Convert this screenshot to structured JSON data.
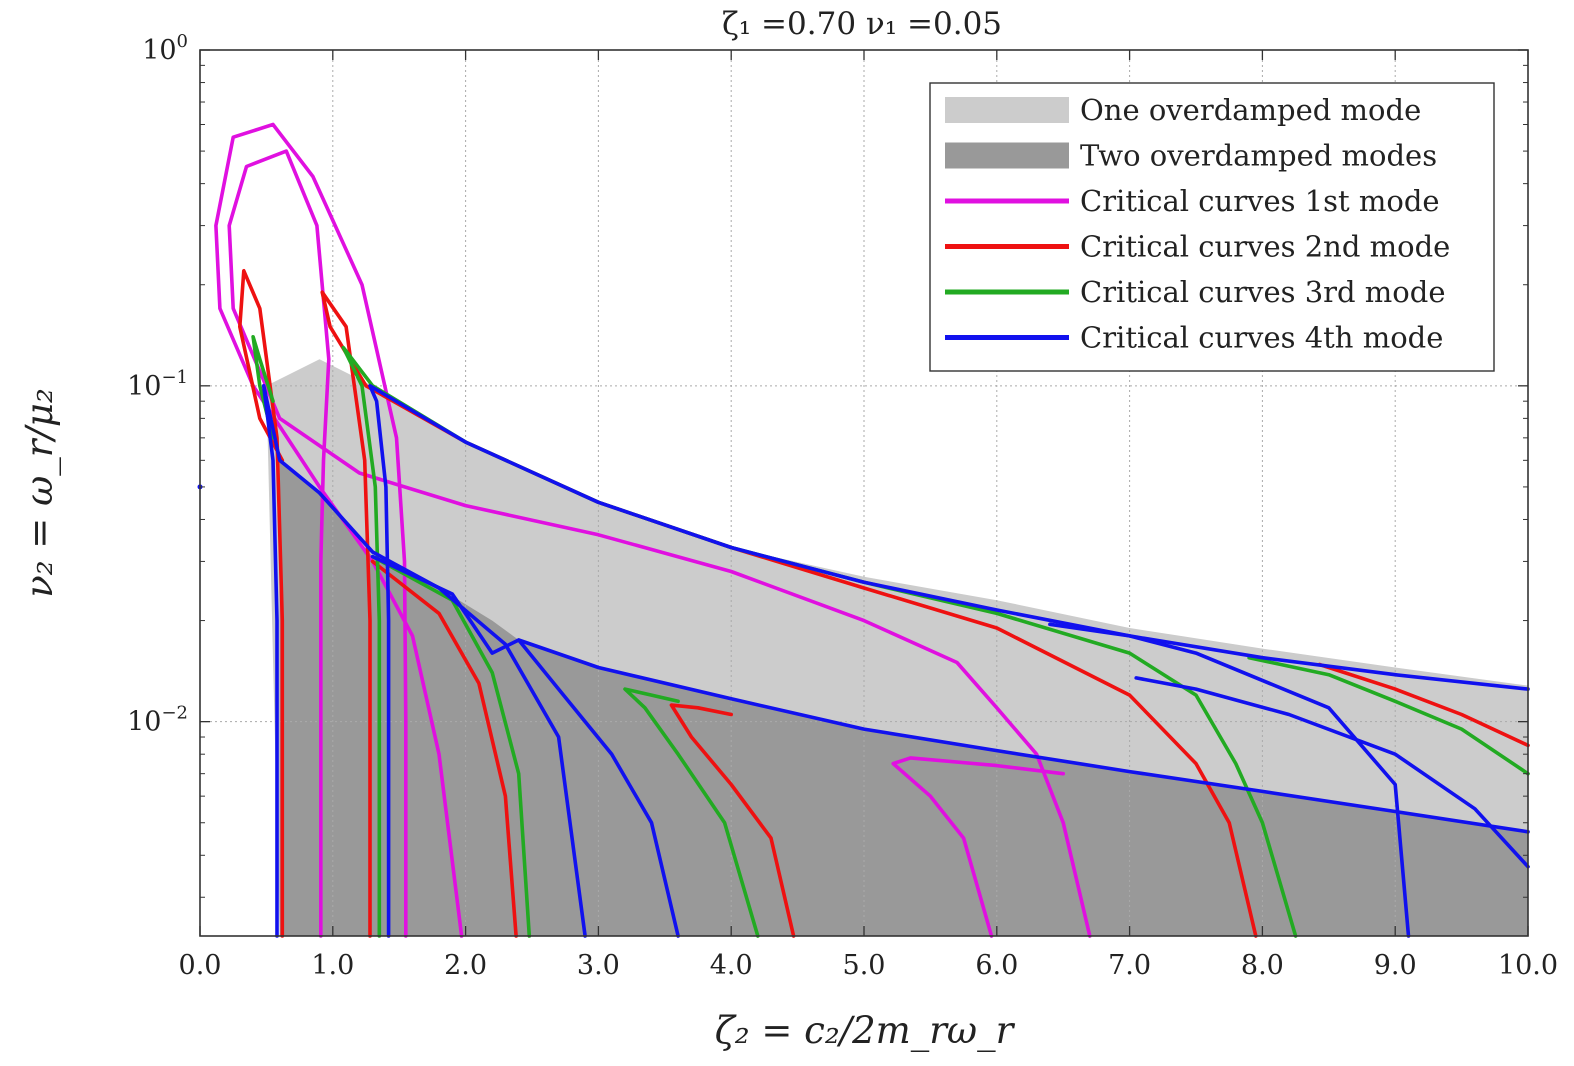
{
  "chart_data": {
    "type": "line",
    "title": "ζ₁ =0.70 ν₁ =0.05",
    "xlabel": "ζ₂ = c₂/2m_rω_r",
    "ylabel": "ν₂ = ω_r/μ₂",
    "x_scale": "linear",
    "y_scale": "log",
    "xlim": [
      0,
      10
    ],
    "ylim": [
      0.0023,
      1
    ],
    "grid": true,
    "legend_position": "top-right",
    "x_tick_labels": [
      "0.0",
      "1.0",
      "2.0",
      "3.0",
      "4.0",
      "5.0",
      "6.0",
      "7.0",
      "8.0",
      "9.0",
      "10.0"
    ],
    "y_ticks": [
      {
        "value": 1,
        "base": "10",
        "exp": "0"
      },
      {
        "value": 0.1,
        "base": "10",
        "exp": "−1"
      },
      {
        "value": 0.01,
        "base": "10",
        "exp": "−2"
      }
    ],
    "regions": [
      {
        "name": "One overdamped mode",
        "color": "#cccccc",
        "points": [
          [
            0.5,
            0.1
          ],
          [
            0.9,
            0.12
          ],
          [
            1.3,
            0.1
          ],
          [
            2,
            0.068
          ],
          [
            3,
            0.045
          ],
          [
            4,
            0.033
          ],
          [
            5,
            0.027
          ],
          [
            6,
            0.023
          ],
          [
            7,
            0.019
          ],
          [
            8,
            0.0165
          ],
          [
            9,
            0.0145
          ],
          [
            10,
            0.0128
          ],
          [
            10,
            0.0023
          ],
          [
            0.6,
            0.0023
          ]
        ]
      },
      {
        "name": "Two overdamped modes",
        "color": "#999999",
        "points": [
          [
            0.6,
            0.0023
          ],
          [
            0.6,
            0.06
          ],
          [
            0.9,
            0.048
          ],
          [
            1.3,
            0.031
          ],
          [
            1.8,
            0.025
          ],
          [
            2.2,
            0.02
          ],
          [
            2.4,
            0.0175
          ],
          [
            3,
            0.0145
          ],
          [
            4,
            0.0117
          ],
          [
            5,
            0.0095
          ],
          [
            6,
            0.0082
          ],
          [
            7,
            0.0071
          ],
          [
            8,
            0.0062
          ],
          [
            9,
            0.0054
          ],
          [
            10,
            0.0047
          ],
          [
            10,
            0.0023
          ]
        ]
      }
    ],
    "series": [
      {
        "name": "Critical curves 1st mode",
        "color": "#e010e0",
        "segments": [
          [
            [
              0.91,
              0.0023
            ],
            [
              0.91,
              0.03
            ],
            [
              0.93,
              0.06
            ],
            [
              0.97,
              0.12
            ],
            [
              0.88,
              0.3
            ],
            [
              0.65,
              0.5
            ],
            [
              0.35,
              0.45
            ],
            [
              0.22,
              0.3
            ],
            [
              0.25,
              0.17
            ],
            [
              0.6,
              0.08
            ],
            [
              1.2,
              0.055
            ],
            [
              2,
              0.044
            ],
            [
              3,
              0.036
            ],
            [
              4,
              0.028
            ],
            [
              5,
              0.02
            ],
            [
              5.7,
              0.015
            ],
            [
              6.0,
              0.011
            ],
            [
              6.3,
              0.008
            ],
            [
              6.5,
              0.005
            ],
            [
              6.7,
              0.0023
            ]
          ],
          [
            [
              1.55,
              0.0023
            ],
            [
              1.55,
              0.01
            ],
            [
              1.54,
              0.03
            ],
            [
              1.48,
              0.07
            ],
            [
              1.22,
              0.2
            ],
            [
              0.85,
              0.42
            ],
            [
              0.55,
              0.6
            ],
            [
              0.25,
              0.55
            ],
            [
              0.12,
              0.3
            ],
            [
              0.15,
              0.17
            ],
            [
              0.4,
              0.1
            ],
            [
              0.9,
              0.05
            ],
            [
              1.3,
              0.03
            ],
            [
              1.6,
              0.018
            ],
            [
              1.8,
              0.008
            ],
            [
              1.97,
              0.0023
            ]
          ],
          [
            [
              5.96,
              0.0023
            ],
            [
              5.75,
              0.0045
            ],
            [
              5.5,
              0.006
            ],
            [
              5.22,
              0.0075
            ],
            [
              5.35,
              0.0078
            ],
            [
              6,
              0.0074
            ],
            [
              6.5,
              0.007
            ]
          ]
        ]
      },
      {
        "name": "Critical curves 2nd mode",
        "color": "#ee1111",
        "segments": [
          [
            [
              0.62,
              0.0023
            ],
            [
              0.62,
              0.02
            ],
            [
              0.58,
              0.07
            ],
            [
              0.45,
              0.17
            ],
            [
              0.33,
              0.22
            ],
            [
              0.3,
              0.15
            ],
            [
              0.45,
              0.08
            ],
            [
              0.62,
              0.06
            ]
          ],
          [
            [
              1.28,
              0.0023
            ],
            [
              1.28,
              0.02
            ],
            [
              1.24,
              0.06
            ],
            [
              1.1,
              0.15
            ],
            [
              0.92,
              0.19
            ],
            [
              0.98,
              0.15
            ],
            [
              1.25,
              0.1
            ],
            [
              2,
              0.068
            ],
            [
              3,
              0.045
            ],
            [
              4,
              0.033
            ],
            [
              5,
              0.025
            ],
            [
              6,
              0.019
            ],
            [
              7,
              0.012
            ],
            [
              7.5,
              0.0075
            ],
            [
              7.75,
              0.005
            ],
            [
              7.95,
              0.0023
            ]
          ],
          [
            [
              1.3,
              0.03
            ],
            [
              1.8,
              0.021
            ],
            [
              2.1,
              0.013
            ],
            [
              2.3,
              0.006
            ],
            [
              2.38,
              0.0023
            ]
          ],
          [
            [
              4.47,
              0.0023
            ],
            [
              4.3,
              0.0045
            ],
            [
              4.0,
              0.0065
            ],
            [
              3.7,
              0.009
            ],
            [
              3.55,
              0.0112
            ],
            [
              3.75,
              0.011
            ],
            [
              4.0,
              0.0105
            ]
          ],
          [
            [
              8.43,
              0.0148
            ],
            [
              9,
              0.0125
            ],
            [
              9.5,
              0.0105
            ],
            [
              10,
              0.0085
            ]
          ]
        ]
      },
      {
        "name": "Critical curves 3rd mode",
        "color": "#22aa22",
        "segments": [
          [
            [
              1.35,
              0.0023
            ],
            [
              1.35,
              0.02
            ],
            [
              1.32,
              0.05
            ],
            [
              1.22,
              0.1
            ],
            [
              1.08,
              0.13
            ],
            [
              1.3,
              0.1
            ],
            [
              2,
              0.068
            ],
            [
              3,
              0.045
            ],
            [
              4,
              0.033
            ],
            [
              5,
              0.026
            ],
            [
              6,
              0.021
            ],
            [
              7,
              0.016
            ],
            [
              7.5,
              0.012
            ],
            [
              7.8,
              0.0075
            ],
            [
              8.0,
              0.005
            ],
            [
              8.25,
              0.0023
            ]
          ],
          [
            [
              0.55,
              0.07
            ],
            [
              0.45,
              0.1
            ],
            [
              0.4,
              0.14
            ],
            [
              0.45,
              0.12
            ],
            [
              0.55,
              0.09
            ]
          ],
          [
            [
              1.3,
              0.031
            ],
            [
              1.9,
              0.023
            ],
            [
              2.2,
              0.014
            ],
            [
              2.4,
              0.007
            ],
            [
              2.48,
              0.0023
            ]
          ],
          [
            [
              4.2,
              0.0023
            ],
            [
              3.95,
              0.005
            ],
            [
              3.6,
              0.008
            ],
            [
              3.35,
              0.011
            ],
            [
              3.2,
              0.0125
            ],
            [
              3.4,
              0.012
            ],
            [
              3.6,
              0.0115
            ]
          ],
          [
            [
              7.9,
              0.0155
            ],
            [
              8.5,
              0.0138
            ],
            [
              9,
              0.0115
            ],
            [
              9.5,
              0.0095
            ],
            [
              10,
              0.007
            ]
          ]
        ]
      },
      {
        "name": "Critical curves 4th mode",
        "color": "#1111ee",
        "segments": [
          [
            [
              0.58,
              0.0023
            ],
            [
              0.58,
              0.02
            ],
            [
              0.55,
              0.06
            ],
            [
              0.48,
              0.1
            ],
            [
              0.6,
              0.06
            ],
            [
              0.9,
              0.048
            ],
            [
              1.3,
              0.032
            ],
            [
              1.8,
              0.025
            ],
            [
              2.3,
              0.017
            ],
            [
              2.7,
              0.009
            ],
            [
              2.9,
              0.0023
            ]
          ],
          [
            [
              1.42,
              0.0023
            ],
            [
              1.42,
              0.02
            ],
            [
              1.4,
              0.05
            ],
            [
              1.33,
              0.09
            ],
            [
              1.28,
              0.1
            ],
            [
              2,
              0.068
            ],
            [
              3,
              0.045
            ],
            [
              4,
              0.033
            ],
            [
              5,
              0.026
            ],
            [
              6,
              0.0215
            ],
            [
              7,
              0.018
            ],
            [
              8,
              0.0155
            ],
            [
              9,
              0.0138
            ],
            [
              10,
              0.0125
            ]
          ],
          [
            [
              1.3,
              0.031
            ],
            [
              1.9,
              0.024
            ],
            [
              2.2,
              0.016
            ],
            [
              2.4,
              0.0175
            ],
            [
              3,
              0.0145
            ],
            [
              4,
              0.0117
            ],
            [
              5,
              0.0095
            ],
            [
              6,
              0.0082
            ],
            [
              7,
              0.0071
            ],
            [
              8,
              0.0062
            ],
            [
              9,
              0.0054
            ],
            [
              10,
              0.0047
            ]
          ],
          [
            [
              3.6,
              0.0023
            ],
            [
              3.4,
              0.005
            ],
            [
              3.1,
              0.008
            ],
            [
              2.7,
              0.0125
            ],
            [
              2.4,
              0.0175
            ]
          ],
          [
            [
              6.4,
              0.0195
            ],
            [
              7,
              0.018
            ],
            [
              7.5,
              0.016
            ],
            [
              8.5,
              0.011
            ],
            [
              9.0,
              0.0065
            ],
            [
              9.1,
              0.0023
            ]
          ],
          [
            [
              7.05,
              0.0135
            ],
            [
              7.5,
              0.0125
            ],
            [
              8.2,
              0.0105
            ],
            [
              9,
              0.008
            ],
            [
              9.6,
              0.0055
            ],
            [
              10,
              0.0037
            ]
          ]
        ]
      }
    ],
    "legend": [
      {
        "label": "One overdamped mode",
        "kind": "patch",
        "color": "#cccccc"
      },
      {
        "label": "Two overdamped modes",
        "kind": "patch",
        "color": "#999999"
      },
      {
        "label": "Critical curves 1st mode",
        "kind": "line",
        "color": "#e010e0"
      },
      {
        "label": "Critical curves 2nd mode",
        "kind": "line",
        "color": "#ee1111"
      },
      {
        "label": "Critical curves 3rd mode",
        "kind": "line",
        "color": "#22aa22"
      },
      {
        "label": "Critical curves 4th mode",
        "kind": "line",
        "color": "#1111ee"
      }
    ],
    "marker_point": {
      "x": 0,
      "y": 0.05,
      "color": "#1111ee"
    }
  }
}
